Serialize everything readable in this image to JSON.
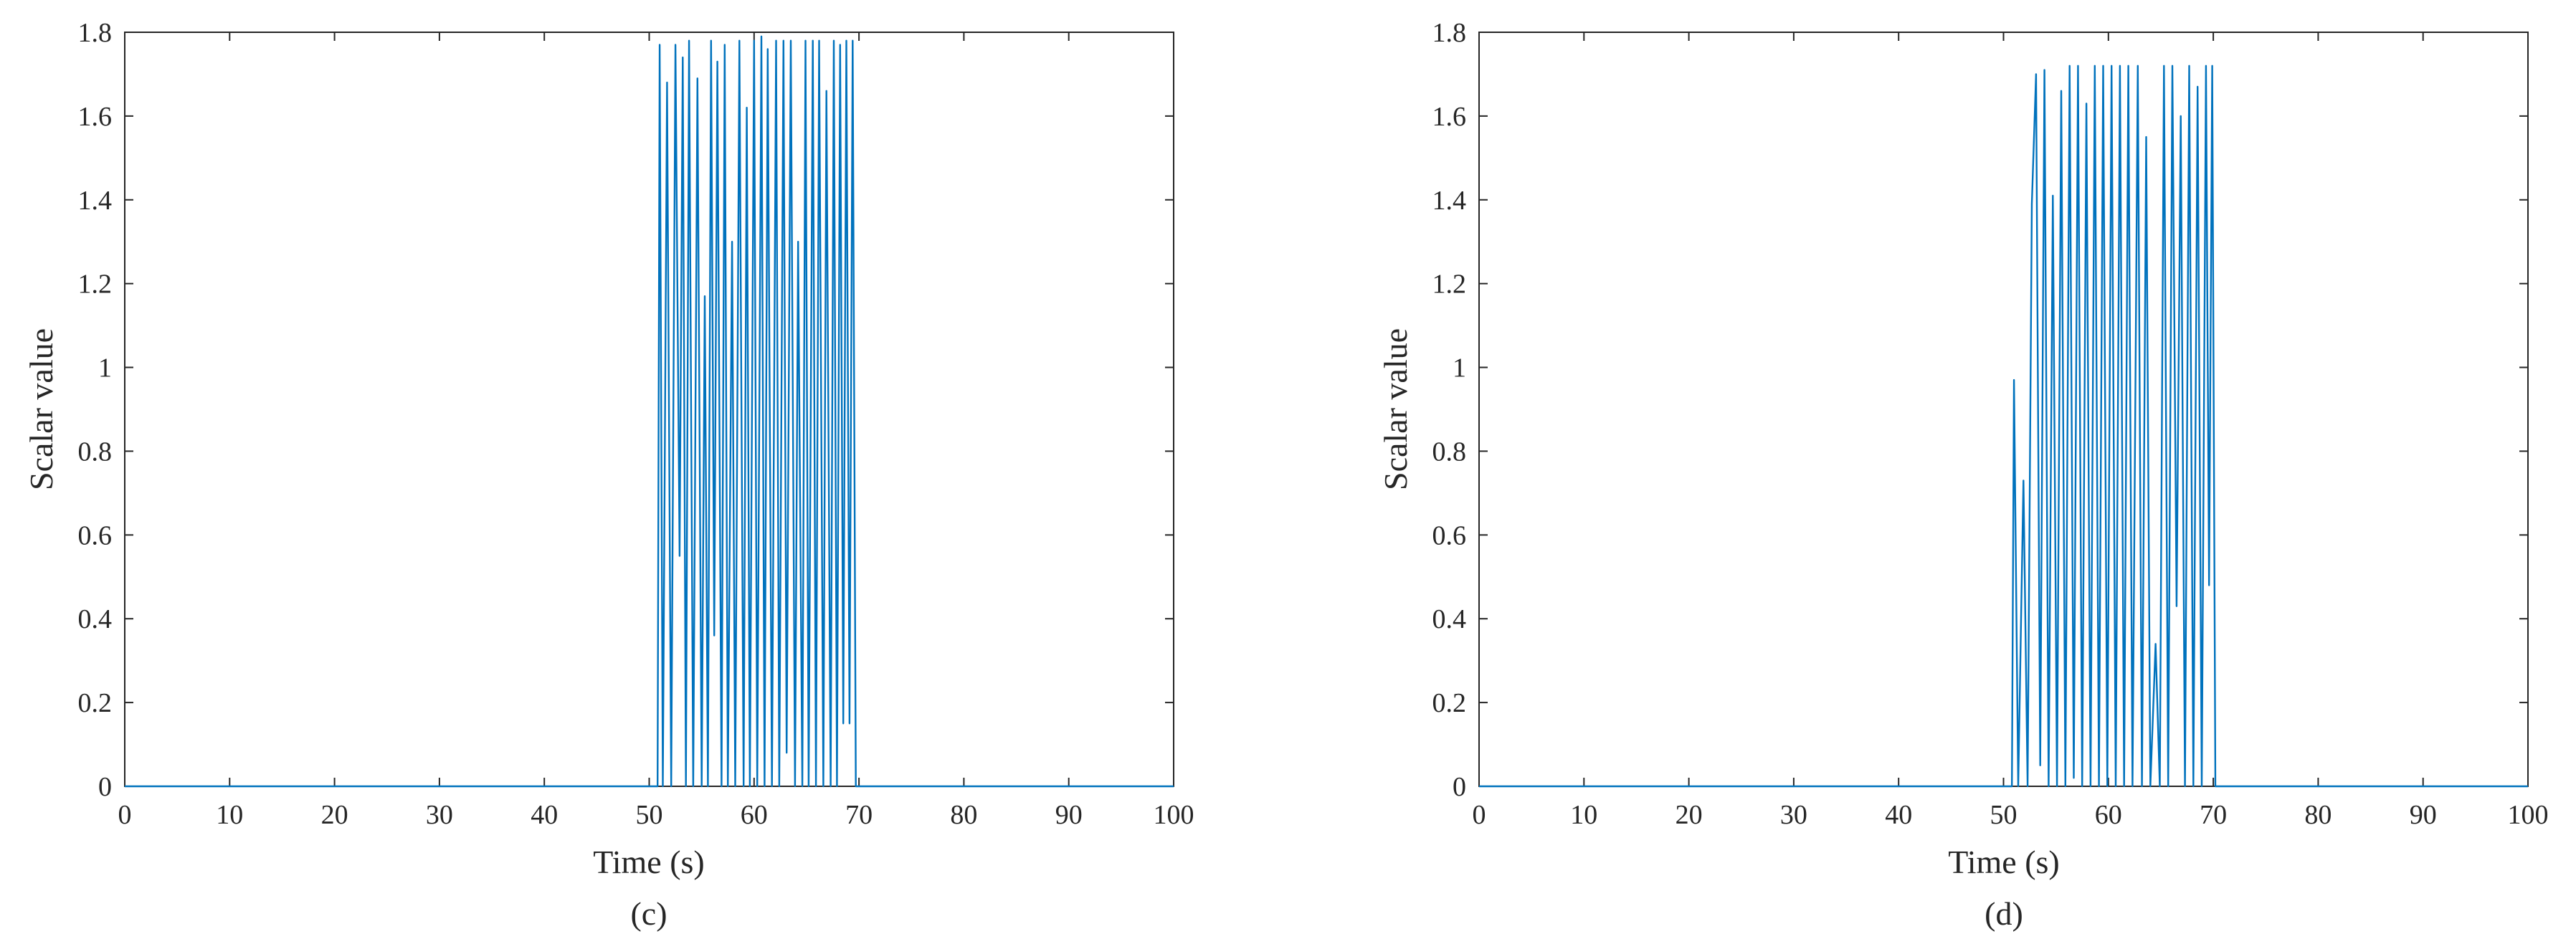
{
  "chart_data": [
    {
      "type": "line",
      "caption": "(c)",
      "xlabel": "Time (s)",
      "ylabel": "Scalar value",
      "xlim": [
        0,
        100
      ],
      "ylim": [
        0,
        1.8
      ],
      "xticks": [
        "0",
        "10",
        "20",
        "30",
        "40",
        "50",
        "60",
        "70",
        "80",
        "90",
        "100"
      ],
      "yticks": [
        "0",
        "0.2",
        "0.4",
        "0.6",
        "0.8",
        "1",
        "1.2",
        "1.4",
        "1.6",
        "1.8"
      ],
      "grid": false,
      "color": "#0072BD",
      "series": [
        {
          "x": [
            0,
            50.8,
            51.0,
            51.3,
            51.7,
            52.1,
            52.5,
            52.9,
            53.2,
            53.5,
            53.8,
            54.2,
            54.6,
            55.0,
            55.3,
            55.6,
            55.9,
            56.2,
            56.5,
            56.9,
            57.2,
            57.5,
            57.9,
            58.2,
            58.6,
            59.0,
            59.3,
            59.6,
            60.0,
            60.3,
            60.7,
            61.0,
            61.3,
            61.7,
            62.1,
            62.4,
            62.8,
            63.1,
            63.5,
            63.9,
            64.2,
            64.6,
            64.9,
            65.2,
            65.6,
            65.9,
            66.2,
            66.6,
            66.9,
            67.3,
            67.6,
            67.9,
            68.2,
            68.5,
            68.8,
            69.1,
            69.4,
            69.7,
            70.1,
            100
          ],
          "y": [
            0,
            0,
            1.77,
            0,
            1.68,
            0,
            1.77,
            0.55,
            1.74,
            0,
            1.78,
            0,
            1.69,
            0,
            1.17,
            0,
            1.78,
            0.36,
            1.73,
            0,
            1.77,
            0,
            1.3,
            0,
            1.78,
            0,
            1.62,
            0,
            1.78,
            0,
            1.79,
            0,
            1.76,
            0,
            1.78,
            0,
            1.78,
            0.08,
            1.78,
            0,
            1.3,
            0,
            1.78,
            0,
            1.78,
            0,
            1.78,
            0,
            1.66,
            0,
            1.78,
            0,
            1.77,
            0.15,
            1.78,
            0.15,
            1.78,
            0,
            0,
            0
          ]
        }
      ]
    },
    {
      "type": "line",
      "caption": "(d)",
      "xlabel": "Time (s)",
      "ylabel": "Scalar value",
      "xlim": [
        0,
        100
      ],
      "ylim": [
        0,
        1.8
      ],
      "xticks": [
        "0",
        "10",
        "20",
        "30",
        "40",
        "50",
        "60",
        "70",
        "80",
        "90",
        "100"
      ],
      "yticks": [
        "0",
        "0.2",
        "0.4",
        "0.6",
        "0.8",
        "1",
        "1.2",
        "1.4",
        "1.6",
        "1.8"
      ],
      "grid": false,
      "color": "#0072BD",
      "series": [
        {
          "x": [
            0,
            50.8,
            51.0,
            51.4,
            51.9,
            52.3,
            52.7,
            53.1,
            53.5,
            53.9,
            54.3,
            54.7,
            55.1,
            55.5,
            55.9,
            56.3,
            56.7,
            57.1,
            57.5,
            57.9,
            58.3,
            58.7,
            59.1,
            59.5,
            59.9,
            60.3,
            60.7,
            61.1,
            61.5,
            61.9,
            62.3,
            62.8,
            63.2,
            63.6,
            64.0,
            64.5,
            64.9,
            65.3,
            65.7,
            66.1,
            66.5,
            66.9,
            67.3,
            67.7,
            68.1,
            68.5,
            68.9,
            69.3,
            69.6,
            69.9,
            70.2,
            100
          ],
          "y": [
            0,
            0,
            0.97,
            0,
            0.73,
            0,
            1.39,
            1.7,
            0.05,
            1.71,
            0,
            1.41,
            0,
            1.66,
            0,
            1.72,
            0.02,
            1.72,
            0,
            1.63,
            0,
            1.72,
            0,
            1.72,
            0,
            1.72,
            0,
            1.72,
            0,
            1.72,
            0,
            1.72,
            0,
            1.55,
            0,
            0.34,
            0,
            1.72,
            0,
            1.72,
            0.43,
            1.6,
            0,
            1.72,
            0,
            1.67,
            0,
            1.72,
            0.48,
            1.72,
            0,
            0
          ]
        }
      ]
    }
  ]
}
